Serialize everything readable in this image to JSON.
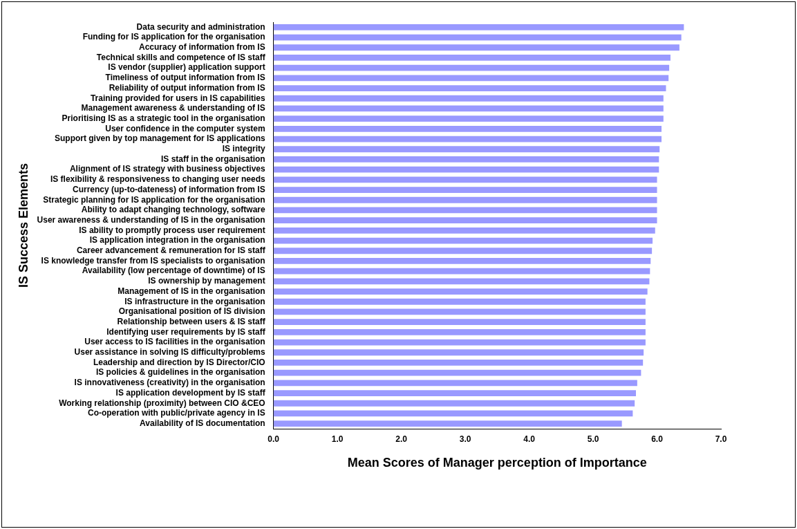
{
  "chart_data": {
    "type": "bar",
    "orientation": "horizontal",
    "xlabel": "Mean Scores of Manager perception of Importance",
    "ylabel": "IS Success Elements",
    "categories": [
      "Data security and administration",
      "Funding for IS application for the organisation",
      "Accuracy of information from IS",
      "Technical skills and competence of IS staff",
      "IS vendor (supplier) application support",
      "Timeliness of output information from IS",
      "Reliability of output information from IS",
      "Training provided for users in IS capabilities",
      "Management awareness & understanding of IS",
      "Prioritising IS as a strategic tool in the organisation",
      "User confidence in the computer system",
      "Support given by top management for IS applications",
      "IS integrity",
      "IS staff in the organisation",
      "Alignment of IS strategy with business objectives",
      "IS flexibility & responsiveness to changing user needs",
      "Currency (up-to-dateness) of information from IS",
      "Strategic planning for IS application for the organisation",
      "Ability to adapt changing technology, software",
      "User awareness & understanding of IS in the organisation",
      "IS ability to promptly process user requirement",
      "IS application integration in the organisation",
      "Career advancement & remuneration for IS staff",
      "IS knowledge transfer from IS specialists to organisation",
      "Availability (low percentage of downtime) of IS",
      "IS ownership by management",
      "Management of IS in the organisation",
      "IS infrastructure in the organisation",
      "Organisational position of IS division",
      "Relationship between users & IS staff",
      "Identifying user requirements by IS staff",
      "User access to IS facilities in the organisation",
      "User assistance in solving IS difficulty/problems",
      "Leadership and direction by IS Director/CIO",
      "IS policies & guidelines in the organisation",
      "IS innovativeness (creativity) in the organisation",
      "IS application development by IS staff",
      "Working relationship (proximity) between CIO &CEO",
      "Co-operation with public/private agency in IS",
      "Availability of IS documentation"
    ],
    "values": [
      6.42,
      6.38,
      6.35,
      6.21,
      6.19,
      6.18,
      6.14,
      6.1,
      6.1,
      6.1,
      6.07,
      6.07,
      6.04,
      6.03,
      6.03,
      6.0,
      6.0,
      6.0,
      6.0,
      6.0,
      5.97,
      5.93,
      5.92,
      5.9,
      5.89,
      5.88,
      5.85,
      5.82,
      5.82,
      5.82,
      5.82,
      5.82,
      5.79,
      5.78,
      5.75,
      5.69,
      5.67,
      5.65,
      5.62,
      5.45
    ],
    "color": "#9999ff",
    "xlim": [
      0,
      7
    ],
    "xticks": [
      {
        "value": 0,
        "label": "0.0"
      },
      {
        "value": 1,
        "label": "1.0"
      },
      {
        "value": 2,
        "label": "2.0"
      },
      {
        "value": 3,
        "label": "3.0"
      },
      {
        "value": 4,
        "label": "4.0"
      },
      {
        "value": 5,
        "label": "5.0"
      },
      {
        "value": 6,
        "label": "6.0"
      },
      {
        "value": 7,
        "label": "7.0"
      }
    ],
    "grid": false,
    "legend": false
  }
}
